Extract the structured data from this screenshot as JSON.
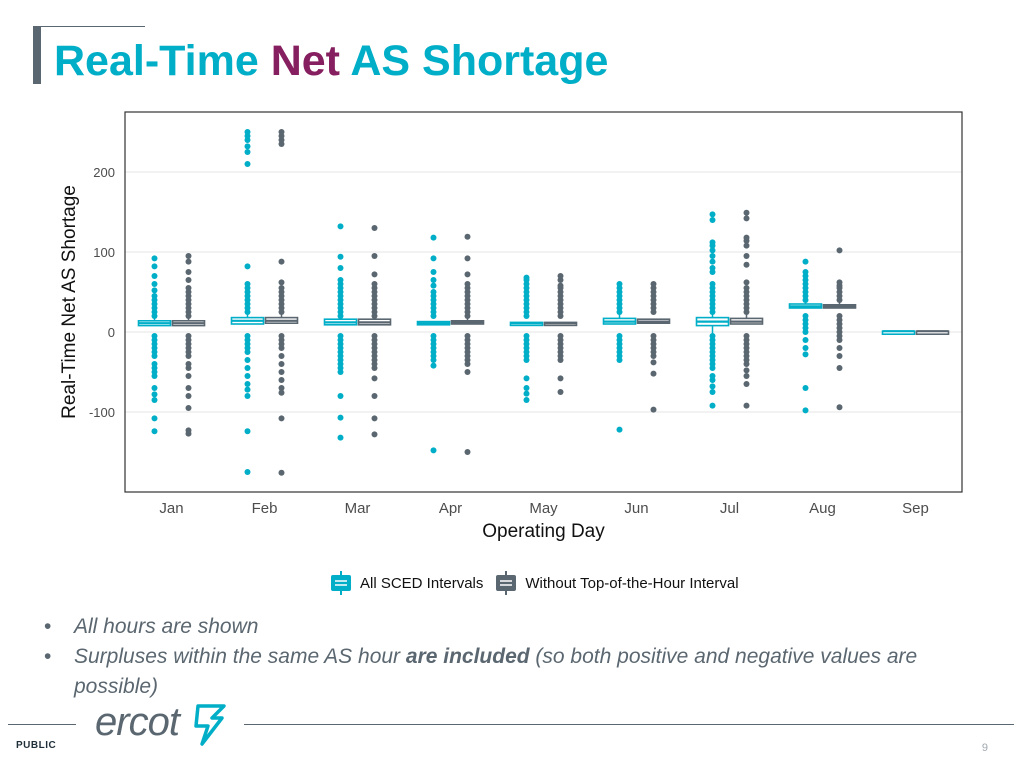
{
  "page": {
    "title_part1": "Real-Time ",
    "title_part2": "Net",
    "title_part3": " AS Shortage",
    "bullets": [
      {
        "text": "All hours are shown"
      },
      {
        "pre": "Surpluses within the same AS hour ",
        "bold": "are included",
        "post": "  (so both positive and negative values are possible)"
      }
    ],
    "logo_text": "ercot",
    "footer_label": "PUBLIC",
    "page_number": "9"
  },
  "colors": {
    "title": "#00aec7",
    "accent": "#861f5f",
    "series_all": "#00aec7",
    "series_without": "#5b6770"
  },
  "chart_data": {
    "type": "boxplot",
    "xlabel": "Operating Day",
    "ylabel": "Real-Time Net AS Shortage",
    "categories": [
      "Jan",
      "Feb",
      "Mar",
      "Apr",
      "May",
      "Jun",
      "Jul",
      "Aug",
      "Sep"
    ],
    "ylim": [
      -200,
      275
    ],
    "yticks": [
      200,
      100,
      0,
      -100
    ],
    "grid": true,
    "legend_position": "bottom",
    "series": [
      {
        "name": "All SCED Intervals",
        "boxes": [
          {
            "q1": 8,
            "median": 11,
            "q3": 14,
            "outliers": [
              92,
              82,
              70,
              60,
              52,
              45,
              40,
              35,
              30,
              25,
              20,
              -5,
              -10,
              -15,
              -20,
              -25,
              -30,
              -40,
              -45,
              -50,
              -55,
              -70,
              -78,
              -85,
              -108,
              -124
            ]
          },
          {
            "q1": 10,
            "median": 14,
            "q3": 18,
            "outliers": [
              250,
              245,
              240,
              232,
              225,
              210,
              82,
              60,
              55,
              50,
              45,
              40,
              35,
              30,
              25,
              -5,
              -10,
              -15,
              -20,
              -25,
              -35,
              -45,
              -55,
              -65,
              -72,
              -80,
              -124,
              -175
            ]
          },
          {
            "q1": 9,
            "median": 12,
            "q3": 16,
            "outliers": [
              132,
              94,
              80,
              65,
              60,
              55,
              50,
              45,
              40,
              35,
              30,
              25,
              20,
              -5,
              -10,
              -15,
              -20,
              -25,
              -30,
              -35,
              -40,
              -45,
              -50,
              -80,
              -107,
              -132
            ]
          },
          {
            "q1": 9,
            "median": 11,
            "q3": 13,
            "outliers": [
              118,
              92,
              75,
              65,
              58,
              50,
              45,
              40,
              35,
              30,
              25,
              20,
              -5,
              -10,
              -15,
              -20,
              -25,
              -30,
              -35,
              -42,
              -148
            ]
          },
          {
            "q1": 9,
            "median": 11,
            "q3": 12,
            "outliers": [
              68,
              65,
              60,
              55,
              50,
              45,
              40,
              35,
              30,
              25,
              20,
              -5,
              -10,
              -15,
              -20,
              -25,
              -30,
              -35,
              -58,
              -70,
              -77,
              -85
            ]
          },
          {
            "q1": 10,
            "median": 13,
            "q3": 17,
            "outliers": [
              60,
              55,
              50,
              45,
              40,
              35,
              30,
              25,
              -5,
              -10,
              -15,
              -20,
              -25,
              -30,
              -35,
              -122
            ]
          },
          {
            "q1": 8,
            "median": 13,
            "q3": 18,
            "outliers": [
              147,
              140,
              112,
              108,
              102,
              95,
              88,
              80,
              75,
              60,
              55,
              50,
              45,
              40,
              35,
              30,
              25,
              -5,
              -10,
              -15,
              -20,
              -25,
              -30,
              -35,
              -40,
              -45,
              -55,
              -60,
              -68,
              -75,
              -92
            ]
          },
          {
            "q1": 30,
            "median": 32,
            "q3": 35,
            "outliers": [
              88,
              75,
              70,
              65,
              60,
              55,
              50,
              45,
              40,
              20,
              15,
              10,
              5,
              0,
              -10,
              -20,
              -28,
              -70,
              -98
            ]
          },
          {
            "q1": 1,
            "median": 1,
            "q3": 1,
            "outliers": []
          }
        ]
      },
      {
        "name": "Without Top-of-the-Hour Interval",
        "boxes": [
          {
            "q1": 8,
            "median": 11,
            "q3": 14,
            "outliers": [
              95,
              88,
              75,
              65,
              55,
              50,
              45,
              40,
              35,
              30,
              25,
              20,
              -5,
              -10,
              -15,
              -20,
              -25,
              -30,
              -40,
              -45,
              -55,
              -70,
              -80,
              -95,
              -123,
              -127
            ]
          },
          {
            "q1": 11,
            "median": 14,
            "q3": 18,
            "outliers": [
              250,
              245,
              240,
              235,
              88,
              62,
              55,
              50,
              45,
              40,
              35,
              30,
              25,
              -5,
              -10,
              -15,
              -20,
              -30,
              -40,
              -50,
              -60,
              -70,
              -76,
              -108,
              -176
            ]
          },
          {
            "q1": 9,
            "median": 12,
            "q3": 16,
            "outliers": [
              130,
              95,
              72,
              60,
              55,
              50,
              45,
              40,
              35,
              30,
              25,
              20,
              -5,
              -10,
              -15,
              -20,
              -25,
              -30,
              -35,
              -40,
              -45,
              -58,
              -80,
              -108,
              -128
            ]
          },
          {
            "q1": 10,
            "median": 12,
            "q3": 14,
            "outliers": [
              119,
              92,
              72,
              60,
              55,
              50,
              45,
              40,
              35,
              30,
              25,
              20,
              -5,
              -10,
              -15,
              -20,
              -25,
              -30,
              -35,
              -40,
              -50,
              -150
            ]
          },
          {
            "q1": 10,
            "median": 11,
            "q3": 12,
            "outliers": [
              70,
              65,
              58,
              55,
              50,
              45,
              40,
              35,
              30,
              25,
              20,
              -5,
              -10,
              -15,
              -20,
              -25,
              -30,
              -35,
              -58,
              -75
            ]
          },
          {
            "q1": 11,
            "median": 13,
            "q3": 16,
            "outliers": [
              60,
              55,
              50,
              45,
              40,
              35,
              30,
              25,
              -5,
              -10,
              -15,
              -20,
              -25,
              -30,
              -38,
              -52,
              -97
            ]
          },
          {
            "q1": 10,
            "median": 13,
            "q3": 17,
            "outliers": [
              149,
              142,
              118,
              114,
              108,
              95,
              84,
              62,
              55,
              50,
              45,
              40,
              35,
              30,
              25,
              -5,
              -10,
              -15,
              -20,
              -25,
              -30,
              -35,
              -40,
              -48,
              -55,
              -65,
              -92
            ]
          },
          {
            "q1": 30,
            "median": 32,
            "q3": 34,
            "outliers": [
              102,
              62,
              58,
              55,
              50,
              45,
              40,
              20,
              15,
              10,
              5,
              0,
              -5,
              -10,
              -20,
              -30,
              -45,
              -94
            ]
          },
          {
            "q1": 1,
            "median": 1,
            "q3": 1,
            "outliers": []
          }
        ]
      }
    ]
  }
}
